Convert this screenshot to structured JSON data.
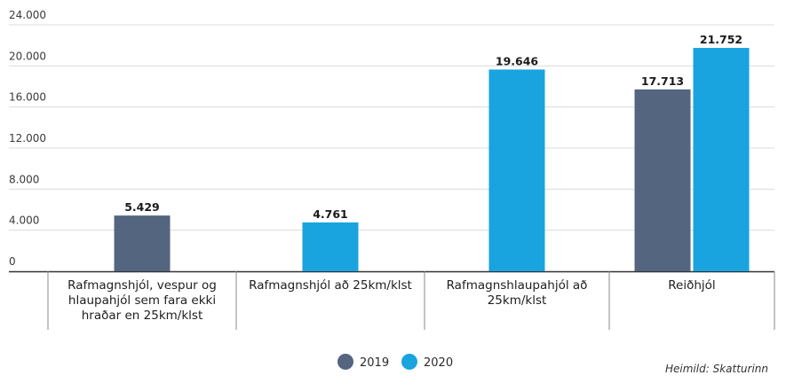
{
  "chart_data": {
    "type": "bar",
    "categories": [
      [
        "Rafmagnshjól, vespur og",
        "hlaupahjól sem fara ekki",
        "hraðar en 25km/klst"
      ],
      [
        "Rafmagnshjól að 25km/klst"
      ],
      [
        "Rafmagnshlaupahjól að",
        "25km/klst"
      ],
      [
        "Reiðhjól"
      ]
    ],
    "series": [
      {
        "name": "2019",
        "color": "#546580",
        "values": [
          5429,
          null,
          null,
          17713
        ],
        "labels": [
          "5.429",
          "",
          "",
          "17.713"
        ]
      },
      {
        "name": "2020",
        "color": "#19a3df",
        "values": [
          null,
          4761,
          19646,
          21752
        ],
        "labels": [
          "",
          "4.761",
          "19.646",
          "21.752"
        ]
      }
    ],
    "yticks": [
      0,
      4000,
      8000,
      12000,
      16000,
      20000,
      24000
    ],
    "ytick_labels": [
      "0",
      "4.000",
      "8.000",
      "12.000",
      "16.000",
      "20.000",
      "24.000"
    ],
    "ylim": [
      0,
      24000
    ],
    "grid": true,
    "legend": "bottom-center",
    "source": "Heimild: Skatturinn"
  }
}
